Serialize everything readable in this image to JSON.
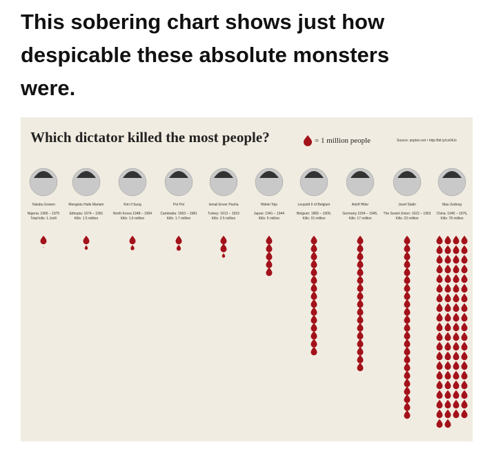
{
  "header": {
    "title": "This sobering chart shows just how despicable these absolute monsters were."
  },
  "infographic": {
    "title": "Which dictator killed the most people?",
    "legend": "= 1 million people",
    "source": "Source: popten.net • http://bit.ly/cs04Jo",
    "dictators": [
      {
        "name": "Yakubu Gowon",
        "period": "Nigeria: 1966 – 1975",
        "kills_label": "Total kills: 1.1mill",
        "kills": 1.1
      },
      {
        "name": "Mengistu Haile Mariam",
        "period": "Ethiopia: 1974 – 1991",
        "kills_label": "Kills: 1.5 million",
        "kills": 1.5
      },
      {
        "name": "Kim Il Sung",
        "period": "North Korea 1948 – 1994",
        "kills_label": "Kills: 1.6 million",
        "kills": 1.6
      },
      {
        "name": "Pol Pot",
        "period": "Cambodia: 1963 – 1981",
        "kills_label": "Kills: 1.7 million",
        "kills": 1.7
      },
      {
        "name": "Ismail Enver Pasha",
        "period": "Turkey: 1913 – 1919",
        "kills_label": "Kills: 2.5 million",
        "kills": 2.5
      },
      {
        "name": "Hideki Tojo",
        "period": "Japan: 1941 – 1944",
        "kills_label": "Kills: 5 million",
        "kills": 5
      },
      {
        "name": "Leopold II of Belgium",
        "period": "Belgium: 1865 – 1909,",
        "kills_label": "Kills: 15 million",
        "kills": 15
      },
      {
        "name": "Adolf Hitler",
        "period": "Germany 1934 – 1945,",
        "kills_label": "Kills: 17 million",
        "kills": 17
      },
      {
        "name": "Josef Stalin",
        "period": "The Soviet Union: 1922 – 1953",
        "kills_label": "Kills: 23 million",
        "kills": 23
      },
      {
        "name": "Mao Zedong",
        "period": "China: 1945 – 1976,",
        "kills_label": "Kills: 78 million",
        "kills": 78
      }
    ]
  }
}
